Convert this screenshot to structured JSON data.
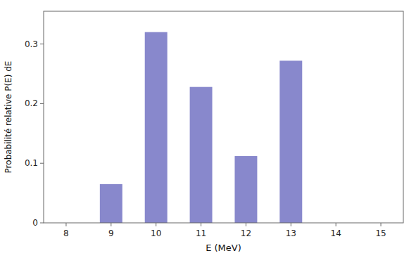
{
  "chart_data": {
    "type": "bar",
    "x": [
      9,
      10,
      11,
      12,
      13
    ],
    "values": [
      0.065,
      0.32,
      0.228,
      0.112,
      0.272
    ],
    "color": "#8888cc",
    "xlim": [
      7.5,
      15.5
    ],
    "ylim": [
      0,
      0.355
    ],
    "xticks": [
      8,
      9,
      10,
      11,
      12,
      13,
      14,
      15
    ],
    "yticks": [
      0,
      0.1,
      0.2,
      0.3
    ],
    "xlabel": "E (MeV)",
    "ylabel": "Probabilité relative P(E) dE",
    "grid": false
  }
}
